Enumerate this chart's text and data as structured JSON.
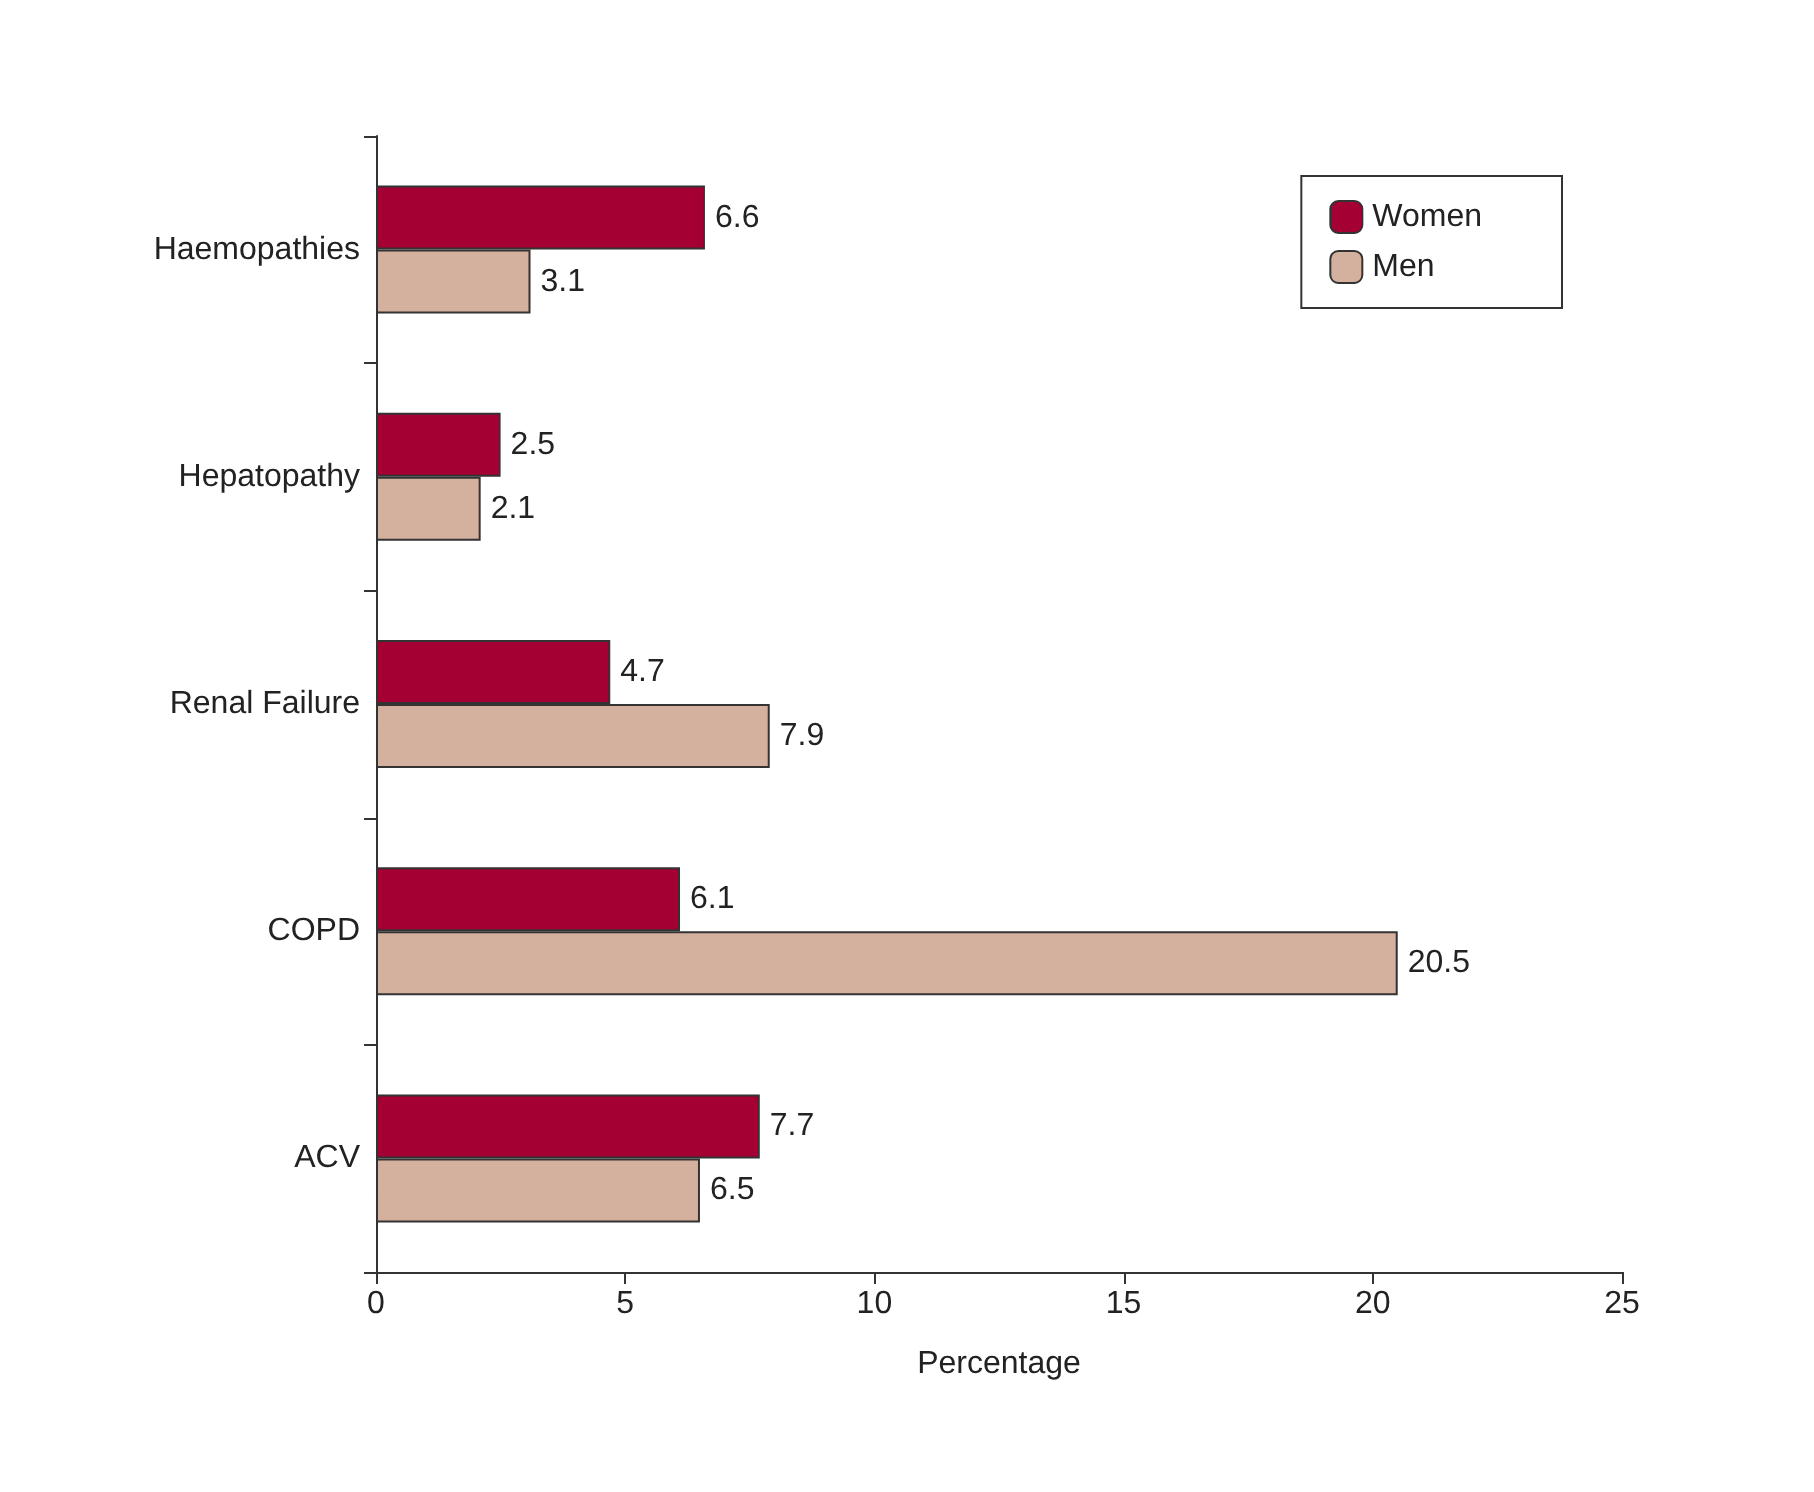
{
  "chart_data": {
    "type": "bar",
    "orientation": "horizontal",
    "xlabel": "Percentage",
    "categories": [
      "Haemopathies",
      "Hepatopathy",
      "Renal Failure",
      "COPD",
      "ACV"
    ],
    "series": [
      {
        "name": "Women",
        "color": "#a50034",
        "values": [
          6.6,
          2.5,
          4.7,
          6.1,
          7.7
        ]
      },
      {
        "name": "Men",
        "color": "#d4b09e",
        "values": [
          3.1,
          2.1,
          7.9,
          20.5,
          6.5
        ]
      }
    ],
    "xlim": [
      0,
      25
    ],
    "xticks": [
      0,
      5,
      10,
      15,
      20,
      25
    ],
    "data_labels": true,
    "legend": "top right",
    "grid": false
  }
}
